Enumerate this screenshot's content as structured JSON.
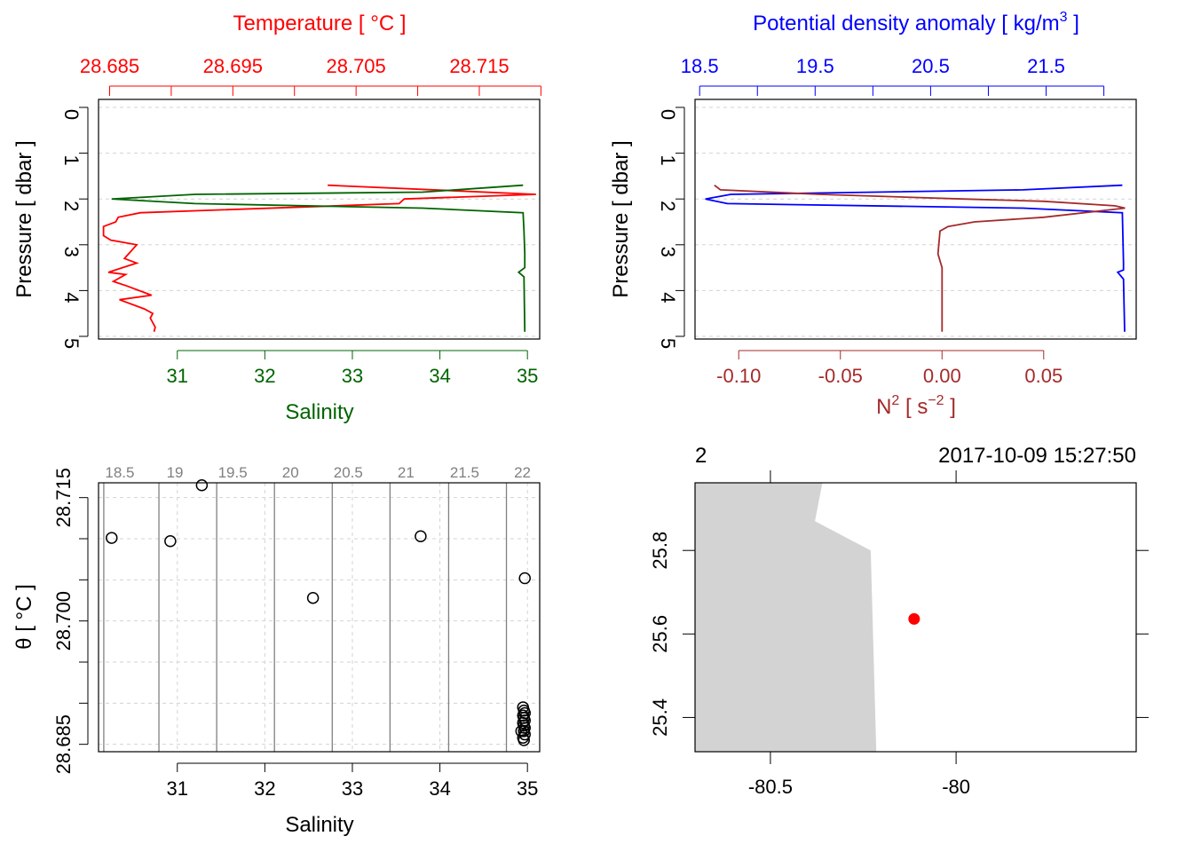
{
  "colors": {
    "temperature": "#ff0000",
    "salinity": "#006400",
    "density": "#0000ff",
    "n2": "#a52a2a",
    "grid": "#d3d3d3",
    "isopycnal": "#808080",
    "land": "#d3d3d3",
    "station": "#ff0000",
    "axis": "#000000"
  },
  "chart_data": [
    {
      "type": "line",
      "panel": "profile-ts",
      "title": "Temperature [ °C ]",
      "xlabel": "Salinity",
      "ylabel": "Pressure [ dbar ]",
      "ylim": [
        5,
        0
      ],
      "top_axis": {
        "label": "Temperature [ °C ]",
        "ticks": [
          28.685,
          28.69,
          28.695,
          28.7,
          28.705,
          28.71,
          28.715,
          28.72
        ],
        "tick_labels": [
          "28.685",
          "28.695",
          "28.705",
          "28.715"
        ],
        "range": [
          28.6841,
          28.7199
        ]
      },
      "bottom_axis": {
        "label": "Salinity",
        "ticks": [
          31,
          32,
          33,
          34,
          35
        ],
        "tick_labels": [
          "31",
          "32",
          "33",
          "34",
          "35"
        ],
        "range": [
          30.1,
          35.14
        ]
      },
      "y_ticks": [
        0,
        1,
        2,
        3,
        4,
        5
      ],
      "y_tick_labels": [
        "0",
        "1",
        "2",
        "3",
        "4",
        "5"
      ],
      "series": [
        {
          "name": "Temperature",
          "axis": "top",
          "x": [
            28.7027,
            28.7196,
            28.7089,
            28.7085,
            28.6875,
            28.6857,
            28.6855,
            28.6845,
            28.6845,
            28.6851,
            28.6872,
            28.6862,
            28.6872,
            28.6849,
            28.6863,
            28.6853,
            28.6864,
            28.6884,
            28.6858,
            28.6878,
            28.6885,
            28.6883,
            28.6887,
            28.6886
          ],
          "pressure": [
            1.7,
            1.9,
            2.0,
            2.1,
            2.3,
            2.4,
            2.5,
            2.6,
            2.8,
            2.9,
            3.0,
            3.3,
            3.4,
            3.6,
            3.65,
            3.8,
            3.9,
            4.1,
            4.2,
            4.4,
            4.5,
            4.6,
            4.8,
            4.9
          ]
        },
        {
          "name": "Salinity",
          "axis": "bottom",
          "x": [
            34.95,
            33.8,
            31.2,
            30.25,
            31.2,
            33.8,
            34.95,
            34.96,
            34.97,
            34.97,
            34.9,
            34.96,
            34.97
          ],
          "pressure": [
            1.7,
            1.85,
            1.9,
            2.0,
            2.1,
            2.2,
            2.3,
            2.7,
            3.2,
            3.5,
            3.6,
            3.7,
            4.9
          ]
        }
      ]
    },
    {
      "type": "line",
      "panel": "profile-density",
      "title": "Potential density anomaly [ kg/m³ ]",
      "xlabel": "N² [ s⁻² ]",
      "ylabel": "Pressure [ dbar ]",
      "ylim": [
        5,
        0
      ],
      "top_axis": {
        "label": "Potential density anomaly [ kg/m³ ]",
        "ticks": [
          18.5,
          19,
          19.5,
          20,
          20.5,
          21,
          21.5,
          22
        ],
        "tick_labels": [
          "18.5",
          "19.5",
          "20.5",
          "21.5"
        ],
        "range": [
          18.46,
          22.28
        ]
      },
      "bottom_axis": {
        "label": "N² [ s⁻² ]",
        "ticks": [
          -0.1,
          -0.05,
          0.0,
          0.05
        ],
        "tick_labels": [
          "-0.10",
          "-0.05",
          "0.00",
          "0.05"
        ],
        "range": [
          -0.1215,
          0.0955
        ]
      },
      "y_ticks": [
        0,
        1,
        2,
        3,
        4,
        5
      ],
      "y_tick_labels": [
        "0",
        "1",
        "2",
        "3",
        "4",
        "5"
      ],
      "series": [
        {
          "name": "Potential density anomaly",
          "axis": "top",
          "x": [
            22.16,
            21.3,
            18.77,
            18.55,
            18.74,
            21.3,
            22.16,
            22.17,
            22.17,
            22.12,
            22.17,
            22.18
          ],
          "pressure": [
            1.7,
            1.8,
            1.9,
            2.0,
            2.1,
            2.2,
            2.3,
            3.4,
            3.55,
            3.6,
            3.75,
            4.9
          ]
        },
        {
          "name": "N2",
          "axis": "bottom",
          "x": [
            -0.112,
            -0.109,
            -0.06,
            0.01,
            0.05,
            0.085,
            0.09,
            0.05,
            0.016,
            0.003,
            -0.001,
            -0.002,
            0.0,
            0.0
          ],
          "pressure": [
            1.7,
            1.8,
            1.9,
            2.0,
            2.05,
            2.15,
            2.2,
            2.4,
            2.5,
            2.6,
            2.7,
            3.2,
            3.5,
            4.9
          ]
        }
      ]
    },
    {
      "type": "scatter",
      "panel": "ts-diagram",
      "xlabel": "Salinity",
      "ylabel": "θ [ °C ]",
      "xlim": [
        30.1,
        35.14
      ],
      "ylim": [
        28.6841,
        28.7168
      ],
      "x_ticks": [
        31,
        32,
        33,
        34,
        35
      ],
      "x_tick_labels": [
        "31",
        "32",
        "33",
        "34",
        "35"
      ],
      "y_ticks": [
        28.685,
        28.69,
        28.695,
        28.7,
        28.705,
        28.71,
        28.715
      ],
      "y_tick_labels": [
        "28.685",
        "28.700",
        "28.715"
      ],
      "isopycnals": {
        "sigma": [
          18.5,
          19,
          19.5,
          20,
          20.5,
          21,
          21.5,
          22
        ],
        "labels": [
          "18.5",
          "19",
          "19.5",
          "20",
          "20.5",
          "21",
          "21.5",
          "22"
        ],
        "salinity": [
          30.16,
          30.79,
          31.45,
          32.11,
          32.77,
          33.43,
          34.1,
          34.76
        ]
      },
      "points": {
        "salinity": [
          30.25,
          30.92,
          31.28,
          32.55,
          33.78,
          34.97,
          34.95,
          34.96,
          34.97,
          34.95,
          34.96,
          34.97,
          34.95,
          34.96,
          34.97,
          34.96,
          34.97,
          34.95,
          34.96,
          34.93
        ],
        "theta": [
          28.7101,
          28.7097,
          28.7165,
          28.7028,
          28.7103,
          28.7052,
          28.6895,
          28.6891,
          28.6888,
          28.6885,
          28.6882,
          28.6879,
          28.6876,
          28.6873,
          28.687,
          28.6866,
          28.6862,
          28.6858,
          28.6855,
          28.6866
        ]
      }
    },
    {
      "type": "map",
      "panel": "station-map",
      "station_label": "2",
      "datetime": "2017-10-09 15:27:50",
      "lon_range": [
        -80.703,
        -79.515
      ],
      "lat_range": [
        25.318,
        25.962
      ],
      "x_ticks": [
        -80.5,
        -80
      ],
      "x_tick_labels": [
        "-80.5",
        "-80"
      ],
      "y_ticks": [
        25.4,
        25.6,
        25.8
      ],
      "y_tick_labels": [
        "25.4",
        "25.6",
        "25.8"
      ],
      "coastline": {
        "lon": [
          -80.703,
          -80.36,
          -80.38,
          -80.23,
          -80.215,
          -80.703
        ],
        "lat": [
          25.962,
          25.962,
          25.87,
          25.8,
          25.318,
          25.318
        ]
      },
      "station": {
        "lon": -80.113,
        "lat": 25.636
      }
    }
  ]
}
